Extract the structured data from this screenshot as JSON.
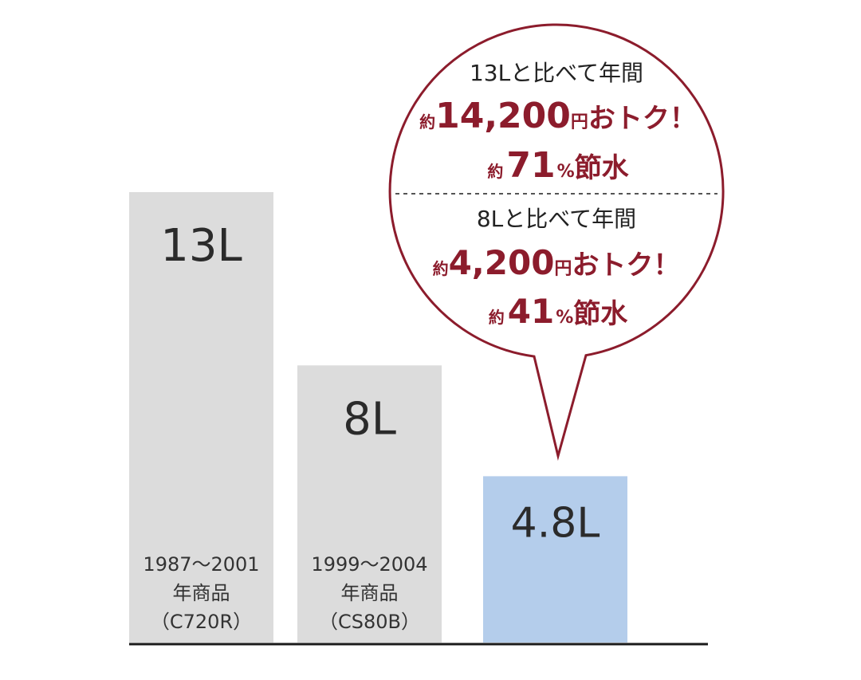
{
  "chart_data": {
    "type": "bar",
    "unit": "L",
    "categories": [
      "13L",
      "8L",
      "4.8L"
    ],
    "values": [
      13,
      8,
      4.8
    ],
    "value_labels": [
      "13L",
      "8L",
      "4.8L"
    ],
    "captions": [
      [
        "1987～2001",
        "年商品",
        "（C720R）"
      ],
      [
        "1999～2004",
        "年商品",
        "（CS80B）"
      ],
      []
    ],
    "colors": [
      "#dcdcdc",
      "#dcdcdc",
      "#b4cdeb"
    ],
    "ylim": [
      0,
      13
    ],
    "grid": false
  },
  "callout": {
    "sections": [
      {
        "header": "13Lと比べて年間",
        "savings": {
          "prefix": "約",
          "amount": "14,200",
          "unit": "円",
          "suffix": "おトク！"
        },
        "ratio": {
          "prefix": "約",
          "value": "71",
          "unit": "%",
          "suffix": "節水"
        }
      },
      {
        "header": "8Lと比べて年間",
        "savings": {
          "prefix": "約",
          "amount": "4,200",
          "unit": "円",
          "suffix": "おトク！"
        },
        "ratio": {
          "prefix": "約",
          "value": "41",
          "unit": "%",
          "suffix": "節水"
        }
      }
    ],
    "border_color": "#8c1c2c",
    "accent_color": "#8c1c2c"
  }
}
